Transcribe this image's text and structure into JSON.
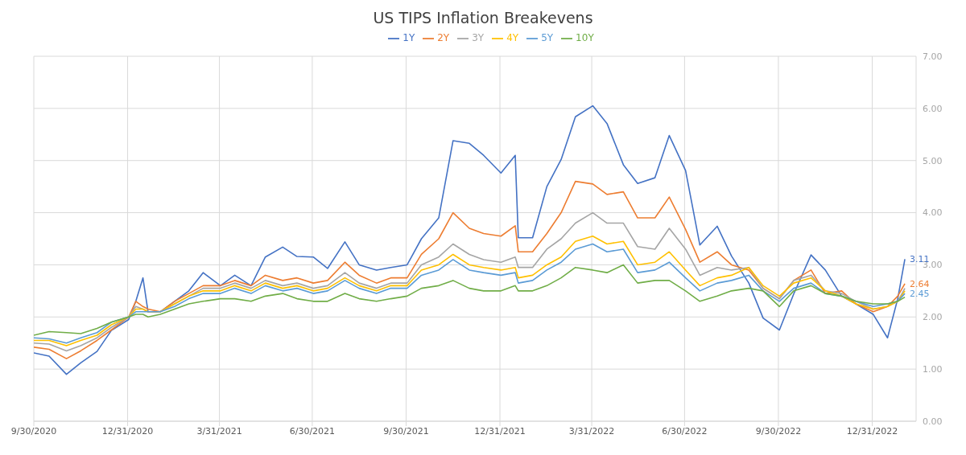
{
  "chart_data": {
    "type": "line",
    "title": "US TIPS Inflation Breakevens",
    "x": [
      "2020-09-30",
      "2020-10-15",
      "2020-11-01",
      "2020-11-15",
      "2020-12-01",
      "2020-12-15",
      "2021-01-01",
      "2021-01-08",
      "2021-01-15",
      "2021-01-20",
      "2021-02-01",
      "2021-02-15",
      "2021-03-01",
      "2021-03-15",
      "2021-04-01",
      "2021-04-15",
      "2021-05-01",
      "2021-05-15",
      "2021-06-01",
      "2021-06-15",
      "2021-07-01",
      "2021-07-15",
      "2021-08-01",
      "2021-08-15",
      "2021-09-01",
      "2021-09-15",
      "2021-10-01",
      "2021-10-15",
      "2021-11-01",
      "2021-11-15",
      "2021-12-01",
      "2021-12-15",
      "2022-01-01",
      "2022-01-15",
      "2022-01-18",
      "2022-02-01",
      "2022-02-15",
      "2022-03-01",
      "2022-03-15",
      "2022-04-01",
      "2022-04-15",
      "2022-05-01",
      "2022-05-15",
      "2022-06-01",
      "2022-06-15",
      "2022-07-01",
      "2022-07-15",
      "2022-08-01",
      "2022-08-15",
      "2022-09-01",
      "2022-09-15",
      "2022-10-01",
      "2022-10-15",
      "2022-11-01",
      "2022-11-15",
      "2022-12-01",
      "2022-12-15",
      "2023-01-01",
      "2023-01-15",
      "2023-01-25",
      "2023-02-01"
    ],
    "series": [
      {
        "name": "1Y",
        "color": "#4472c4",
        "values": [
          1.31,
          1.25,
          0.9,
          1.12,
          1.34,
          1.74,
          1.95,
          2.3,
          2.75,
          2.1,
          2.1,
          2.3,
          2.5,
          2.85,
          2.6,
          2.8,
          2.6,
          3.15,
          3.34,
          3.16,
          3.15,
          2.93,
          3.44,
          3.0,
          2.9,
          2.95,
          3.0,
          3.5,
          3.9,
          5.38,
          5.33,
          5.1,
          4.76,
          5.1,
          3.52,
          3.52,
          4.5,
          5.02,
          5.84,
          6.05,
          5.71,
          4.92,
          4.56,
          4.67,
          5.48,
          4.81,
          3.38,
          3.74,
          3.17,
          2.65,
          1.98,
          1.75,
          2.44,
          3.19,
          2.9,
          2.4,
          2.25,
          2.05,
          1.6,
          2.35,
          3.11
        ]
      },
      {
        "name": "2Y",
        "color": "#ed7d31",
        "values": [
          1.42,
          1.38,
          1.2,
          1.35,
          1.55,
          1.75,
          2.0,
          2.3,
          2.2,
          2.15,
          2.1,
          2.3,
          2.45,
          2.6,
          2.6,
          2.7,
          2.6,
          2.8,
          2.7,
          2.75,
          2.65,
          2.7,
          3.05,
          2.8,
          2.65,
          2.75,
          2.75,
          3.2,
          3.5,
          4.0,
          3.7,
          3.6,
          3.55,
          3.75,
          3.25,
          3.25,
          3.6,
          4.0,
          4.6,
          4.55,
          4.35,
          4.4,
          3.9,
          3.9,
          4.3,
          3.68,
          3.05,
          3.25,
          3.0,
          2.9,
          2.55,
          2.35,
          2.7,
          2.9,
          2.45,
          2.5,
          2.25,
          2.1,
          2.2,
          2.4,
          2.64
        ]
      },
      {
        "name": "3Y",
        "color": "#a5a5a5",
        "values": [
          1.5,
          1.48,
          1.35,
          1.45,
          1.6,
          1.8,
          2.0,
          2.2,
          2.15,
          2.1,
          2.1,
          2.25,
          2.4,
          2.55,
          2.55,
          2.65,
          2.55,
          2.7,
          2.6,
          2.65,
          2.55,
          2.6,
          2.85,
          2.65,
          2.55,
          2.65,
          2.65,
          3.0,
          3.15,
          3.4,
          3.2,
          3.1,
          3.05,
          3.15,
          2.95,
          2.95,
          3.3,
          3.5,
          3.8,
          4.0,
          3.8,
          3.8,
          3.35,
          3.3,
          3.7,
          3.3,
          2.8,
          2.95,
          2.9,
          2.95,
          2.55,
          2.35,
          2.7,
          2.8,
          2.5,
          2.45,
          2.3,
          2.15,
          2.2,
          2.3,
          2.55
        ]
      },
      {
        "name": "4Y",
        "color": "#ffc000",
        "values": [
          1.55,
          1.55,
          1.45,
          1.55,
          1.65,
          1.85,
          2.0,
          2.15,
          2.15,
          2.1,
          2.1,
          2.25,
          2.4,
          2.5,
          2.5,
          2.6,
          2.5,
          2.65,
          2.55,
          2.6,
          2.5,
          2.55,
          2.75,
          2.6,
          2.5,
          2.6,
          2.6,
          2.9,
          3.0,
          3.2,
          3.0,
          2.95,
          2.9,
          2.95,
          2.75,
          2.8,
          3.0,
          3.15,
          3.45,
          3.55,
          3.4,
          3.45,
          3.0,
          3.05,
          3.25,
          2.9,
          2.6,
          2.75,
          2.8,
          2.95,
          2.6,
          2.4,
          2.65,
          2.75,
          2.5,
          2.4,
          2.25,
          2.15,
          2.2,
          2.3,
          2.5
        ]
      },
      {
        "name": "5Y",
        "color": "#5b9bd5",
        "values": [
          1.6,
          1.58,
          1.5,
          1.6,
          1.7,
          1.9,
          2.0,
          2.1,
          2.1,
          2.1,
          2.1,
          2.2,
          2.35,
          2.45,
          2.45,
          2.55,
          2.45,
          2.6,
          2.5,
          2.55,
          2.45,
          2.5,
          2.7,
          2.55,
          2.45,
          2.55,
          2.55,
          2.8,
          2.9,
          3.1,
          2.9,
          2.85,
          2.8,
          2.85,
          2.65,
          2.7,
          2.9,
          3.05,
          3.3,
          3.4,
          3.25,
          3.3,
          2.85,
          2.9,
          3.05,
          2.75,
          2.5,
          2.65,
          2.7,
          2.8,
          2.5,
          2.3,
          2.55,
          2.65,
          2.45,
          2.4,
          2.3,
          2.2,
          2.25,
          2.3,
          2.45
        ]
      },
      {
        "name": "10Y",
        "color": "#70ad47",
        "values": [
          1.65,
          1.72,
          1.7,
          1.68,
          1.78,
          1.9,
          2.0,
          2.05,
          2.05,
          2.0,
          2.05,
          2.15,
          2.25,
          2.3,
          2.35,
          2.35,
          2.3,
          2.4,
          2.45,
          2.35,
          2.3,
          2.3,
          2.45,
          2.35,
          2.3,
          2.35,
          2.4,
          2.55,
          2.6,
          2.7,
          2.55,
          2.5,
          2.5,
          2.6,
          2.5,
          2.5,
          2.6,
          2.75,
          2.95,
          2.9,
          2.85,
          3.0,
          2.65,
          2.7,
          2.7,
          2.5,
          2.3,
          2.4,
          2.5,
          2.55,
          2.5,
          2.2,
          2.5,
          2.6,
          2.45,
          2.4,
          2.3,
          2.25,
          2.25,
          2.3,
          2.38
        ]
      }
    ],
    "xlim": [
      "2020-09-30",
      "2023-02-12"
    ],
    "xticks": [
      {
        "value": "2020-09-30",
        "label": "9/30/2020"
      },
      {
        "value": "2020-12-31",
        "label": "12/31/2020"
      },
      {
        "value": "2021-03-31",
        "label": "3/31/2021"
      },
      {
        "value": "2021-06-30",
        "label": "6/30/2021"
      },
      {
        "value": "2021-09-30",
        "label": "9/30/2021"
      },
      {
        "value": "2021-12-31",
        "label": "12/31/2021"
      },
      {
        "value": "2022-03-31",
        "label": "3/31/2022"
      },
      {
        "value": "2022-06-30",
        "label": "6/30/2022"
      },
      {
        "value": "2022-09-30",
        "label": "9/30/2022"
      },
      {
        "value": "2022-12-31",
        "label": "12/31/2022"
      }
    ],
    "ylim": [
      0,
      7
    ],
    "yticks": [
      {
        "value": 0,
        "label": "0.00"
      },
      {
        "value": 1,
        "label": "1.00"
      },
      {
        "value": 2,
        "label": "2.00"
      },
      {
        "value": 3,
        "label": "3.00"
      },
      {
        "value": 4,
        "label": "4.00"
      },
      {
        "value": 5,
        "label": "5.00"
      },
      {
        "value": 6,
        "label": "6.00"
      },
      {
        "value": 7,
        "label": "7.00"
      }
    ],
    "annotations": [
      {
        "text": "3.11",
        "x": "2023-02-01",
        "y": 3.11
      },
      {
        "text": "2.64",
        "x": "2023-02-01",
        "y": 2.64
      },
      {
        "text": "2.45",
        "x": "2023-02-01",
        "y": 2.45
      }
    ],
    "grid": true,
    "legend": "top",
    "marker": "none",
    "line_style": "solid"
  }
}
